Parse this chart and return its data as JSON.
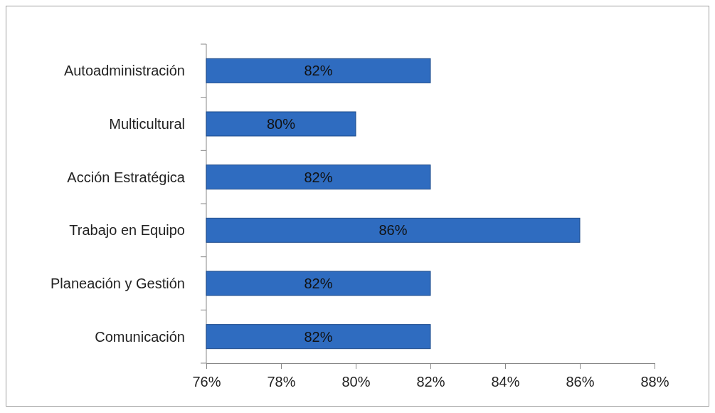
{
  "chart_data": {
    "type": "bar",
    "orientation": "horizontal",
    "categories": [
      "Autoadministración",
      "Multicultural",
      "Acción Estratégica",
      "Trabajo en Equipo",
      "Planeación y Gestión",
      "Comunicación"
    ],
    "values": [
      82,
      80,
      82,
      86,
      82,
      82
    ],
    "value_labels": [
      "82%",
      "80%",
      "82%",
      "86%",
      "82%",
      "82%"
    ],
    "color": "#2f6cc0",
    "xlim": [
      76,
      88
    ],
    "xticks": [
      {
        "value": 76,
        "label": "76%"
      },
      {
        "value": 78,
        "label": "78%"
      },
      {
        "value": 80,
        "label": "80%"
      },
      {
        "value": 82,
        "label": "82%"
      },
      {
        "value": 84,
        "label": "84%"
      },
      {
        "value": 86,
        "label": "86%"
      },
      {
        "value": 88,
        "label": "88%"
      }
    ],
    "grid": false
  }
}
